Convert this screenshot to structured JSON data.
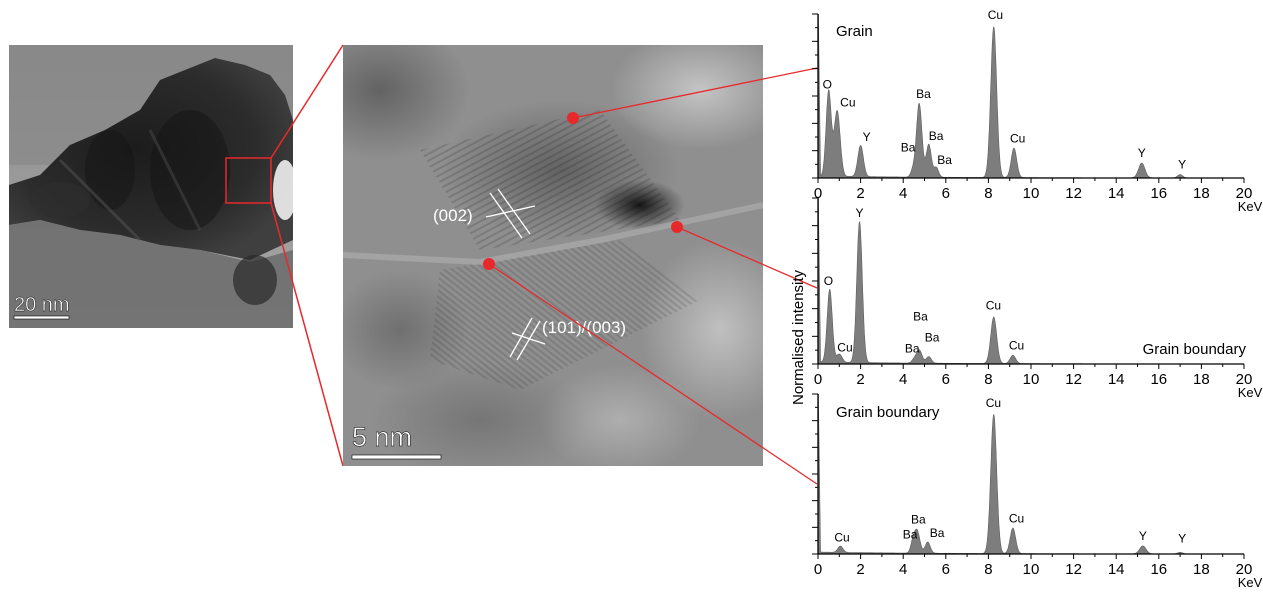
{
  "left_image": {
    "scale_bar": "20 nm",
    "zoom_box_color": "#e8292b"
  },
  "center_image": {
    "scale_bar": "5 nm",
    "plane_labels": [
      "(002)",
      "(101)/(003)"
    ],
    "marker_color": "#e8292b"
  },
  "axis_shared_ylabel": "Normalised intensity",
  "chart_data": [
    {
      "type": "area",
      "title": "Grain",
      "xlabel": "KeV",
      "xlim": [
        0,
        20
      ],
      "xticks": [
        "0",
        "2",
        "4",
        "6",
        "8",
        "10",
        "12",
        "14",
        "16",
        "18",
        "20"
      ],
      "fill_color": "#7d7d7d",
      "peaks": [
        {
          "x": 0.5,
          "h": 0.52,
          "w": 0.12,
          "label": "O"
        },
        {
          "x": 0.9,
          "h": 0.4,
          "w": 0.14,
          "label": "Cu"
        },
        {
          "x": 2.0,
          "h": 0.19,
          "w": 0.13,
          "label": "Y"
        },
        {
          "x": 4.45,
          "h": 0.04,
          "w": 0.1,
          "label": "Ba"
        },
        {
          "x": 4.75,
          "h": 0.45,
          "w": 0.13,
          "label": "Ba"
        },
        {
          "x": 5.2,
          "h": 0.2,
          "w": 0.12,
          "label": "Ba"
        },
        {
          "x": 5.55,
          "h": 0.06,
          "w": 0.11,
          "label": "Ba"
        },
        {
          "x": 8.25,
          "h": 0.92,
          "w": 0.14,
          "label": "Cu"
        },
        {
          "x": 9.2,
          "h": 0.18,
          "w": 0.13,
          "label": "Cu"
        },
        {
          "x": 15.2,
          "h": 0.09,
          "w": 0.15,
          "label": "Y"
        },
        {
          "x": 17.0,
          "h": 0.02,
          "w": 0.12,
          "label": "Y"
        }
      ]
    },
    {
      "type": "area",
      "title": "Grain boundary",
      "xlabel": "KeV",
      "xlim": [
        0,
        20
      ],
      "xticks": [
        "0",
        "2",
        "4",
        "6",
        "8",
        "10",
        "12",
        "14",
        "16",
        "18",
        "20"
      ],
      "fill_color": "#7d7d7d",
      "peaks": [
        {
          "x": 0.55,
          "h": 0.44,
          "w": 0.12,
          "label": "O"
        },
        {
          "x": 1.0,
          "h": 0.05,
          "w": 0.13,
          "label": "Cu"
        },
        {
          "x": 1.95,
          "h": 0.85,
          "w": 0.13,
          "label": "Y"
        },
        {
          "x": 4.5,
          "h": 0.02,
          "w": 0.1,
          "label": "Ba"
        },
        {
          "x": 4.75,
          "h": 0.08,
          "w": 0.13,
          "label": "Ba"
        },
        {
          "x": 5.2,
          "h": 0.04,
          "w": 0.12,
          "label": "Ba"
        },
        {
          "x": 8.25,
          "h": 0.28,
          "w": 0.14,
          "label": "Cu"
        },
        {
          "x": 9.15,
          "h": 0.05,
          "w": 0.13,
          "label": "Cu"
        }
      ]
    },
    {
      "type": "area",
      "title": "Grain boundary",
      "xlabel": "KeV",
      "xlim": [
        0,
        20
      ],
      "xticks": [
        "0",
        "2",
        "4",
        "6",
        "8",
        "10",
        "12",
        "14",
        "16",
        "18",
        "20"
      ],
      "fill_color": "#7d7d7d",
      "peaks": [
        {
          "x": 1.05,
          "h": 0.04,
          "w": 0.12,
          "label": "Cu"
        },
        {
          "x": 4.45,
          "h": 0.06,
          "w": 0.1,
          "label": "Ba"
        },
        {
          "x": 4.65,
          "h": 0.14,
          "w": 0.13,
          "label": "Ba"
        },
        {
          "x": 5.15,
          "h": 0.07,
          "w": 0.12,
          "label": "Ba"
        },
        {
          "x": 8.25,
          "h": 0.87,
          "w": 0.14,
          "label": "Cu"
        },
        {
          "x": 9.15,
          "h": 0.16,
          "w": 0.13,
          "label": "Cu"
        },
        {
          "x": 15.25,
          "h": 0.05,
          "w": 0.15,
          "label": "Y"
        },
        {
          "x": 17.0,
          "h": 0.01,
          "w": 0.12,
          "label": "Y"
        }
      ]
    }
  ]
}
